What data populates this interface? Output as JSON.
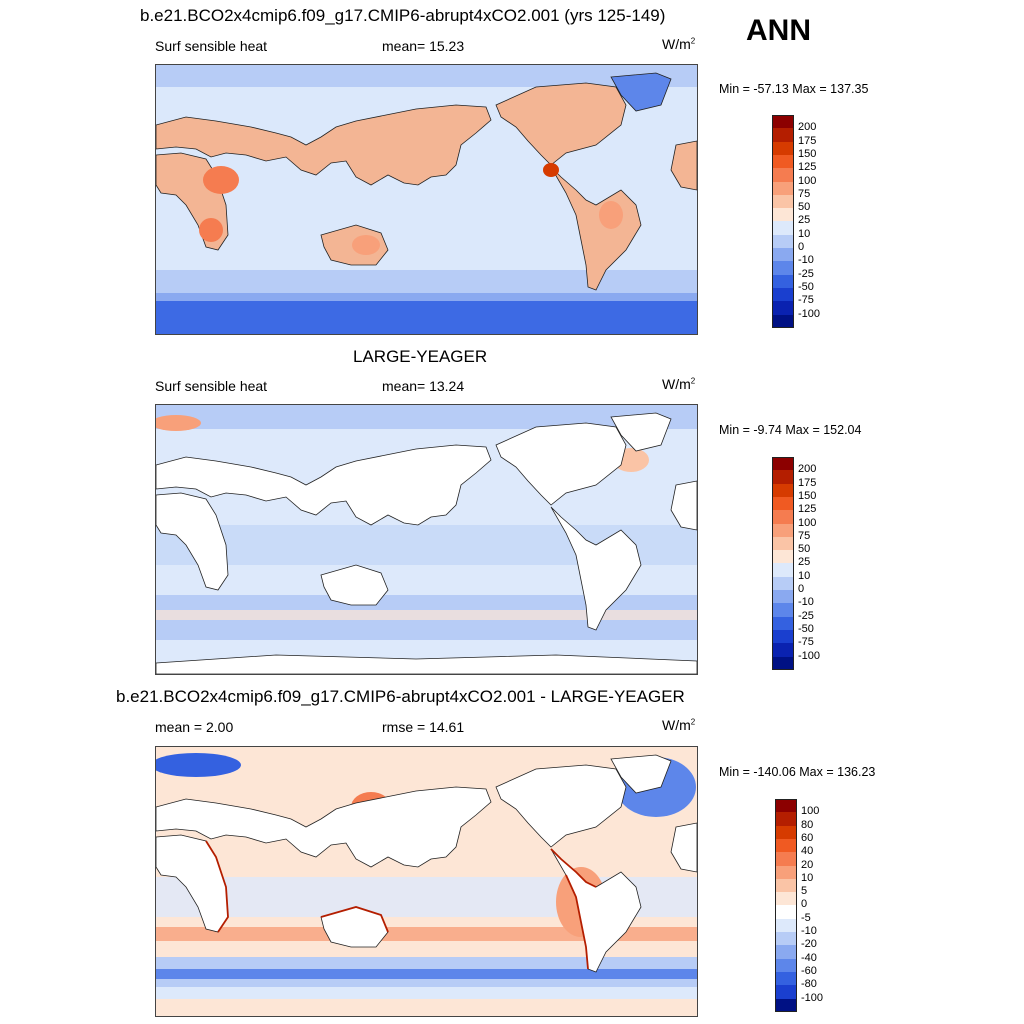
{
  "panels": [
    {
      "title": "b.e21.BCO2x4cmip6.f09_g17.CMIP6-abrupt4xCO2.001 (yrs 125-149)",
      "left_label": "Surf sensible heat",
      "center_label": "mean=  15.23",
      "units": "W/m",
      "units_sup": "2",
      "minmax": "Min = -57.13 Max = 137.35",
      "levels": [
        "200",
        "175",
        "150",
        "125",
        "100",
        "75",
        "50",
        "25",
        "10",
        "0",
        "-10",
        "-25",
        "-50",
        "-75",
        "-100"
      ],
      "colors": [
        "#8c0000",
        "#b41e00",
        "#d63b00",
        "#f05a22",
        "#f57c50",
        "#f8a07a",
        "#fac4a6",
        "#fde6d6",
        "#dde9fb",
        "#b7ccf6",
        "#8aa9f0",
        "#5d86ea",
        "#3461e0",
        "#1a3fcf",
        "#0a22b0",
        "#001184"
      ],
      "land_fill": "#f3b594",
      "ocean_fill": "#dbe8fb"
    },
    {
      "title": "LARGE-YEAGER",
      "left_label": "Surf sensible heat",
      "center_label": "mean=  13.24",
      "units": "W/m",
      "units_sup": "2",
      "minmax": "Min =  -9.74 Max = 152.04",
      "levels": [
        "200",
        "175",
        "150",
        "125",
        "100",
        "75",
        "50",
        "25",
        "10",
        "0",
        "-10",
        "-25",
        "-50",
        "-75",
        "-100"
      ],
      "colors": [
        "#8c0000",
        "#b41e00",
        "#d63b00",
        "#f05a22",
        "#f57c50",
        "#f8a07a",
        "#fac4a6",
        "#fde6d6",
        "#dde9fb",
        "#b7ccf6",
        "#8aa9f0",
        "#5d86ea",
        "#3461e0",
        "#1a3fcf",
        "#0a22b0",
        "#001184"
      ],
      "land_fill": "#ffffff",
      "ocean_fill": "#c9dbf8"
    },
    {
      "title": "b.e21.BCO2x4cmip6.f09_g17.CMIP6-abrupt4xCO2.001 - LARGE-YEAGER",
      "left_label": "mean =   2.00",
      "center_label": "rmse =  14.61",
      "units": "W/m",
      "units_sup": "2",
      "minmax": "Min = -140.06 Max = 136.23",
      "levels": [
        "100",
        "80",
        "60",
        "40",
        "20",
        "10",
        "5",
        "0",
        "-5",
        "-10",
        "-20",
        "-40",
        "-60",
        "-80",
        "-100"
      ],
      "colors": [
        "#8c0000",
        "#b41e00",
        "#d63b00",
        "#f05a22",
        "#f57c50",
        "#f8a07a",
        "#fac4a6",
        "#fde6d6",
        "#ffffff",
        "#dde9fb",
        "#b7ccf6",
        "#8aa9f0",
        "#5d86ea",
        "#3461e0",
        "#1a3fcf",
        "#001184"
      ],
      "land_fill": "#ffffff",
      "ocean_fill": "#fbe0d0"
    }
  ],
  "season_label": "ANN"
}
